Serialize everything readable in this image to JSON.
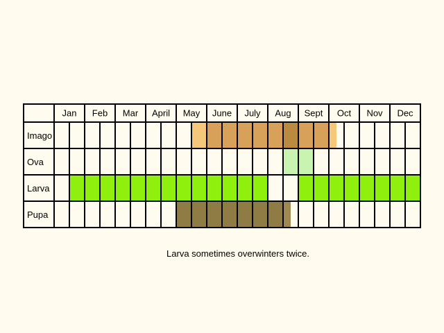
{
  "months": [
    "Jan",
    "Feb",
    "Mar",
    "April",
    "May",
    "June",
    "July",
    "Aug",
    "Sept",
    "Oct",
    "Nov",
    "Dec"
  ],
  "stages": [
    {
      "label": "Imago",
      "bands": [
        {
          "from": 9,
          "to": 10,
          "color": "#f5c77a"
        },
        {
          "from": 10,
          "to": 15,
          "color": "#d8a15a"
        },
        {
          "from": 15,
          "to": 16,
          "color": "#ba8b3e"
        },
        {
          "from": 16,
          "to": 18,
          "color": "#d8a15a"
        },
        {
          "from": 18,
          "to": 18.5,
          "color": "#f5c77a"
        }
      ]
    },
    {
      "label": "Ova",
      "bands": [
        {
          "from": 15,
          "to": 17,
          "color": "#c9f3b1"
        }
      ]
    },
    {
      "label": "Larva",
      "bands": [
        {
          "from": 1,
          "to": 14,
          "color": "#8ef00c"
        },
        {
          "from": 16,
          "to": 24,
          "color": "#8ef00c"
        }
      ]
    },
    {
      "label": "Pupa",
      "bands": [
        {
          "from": 8,
          "to": 15,
          "color": "#8f7b44"
        },
        {
          "from": 15,
          "to": 15.5,
          "color": "#a08950"
        }
      ]
    }
  ],
  "note": "Larva sometimes overwinters twice."
}
